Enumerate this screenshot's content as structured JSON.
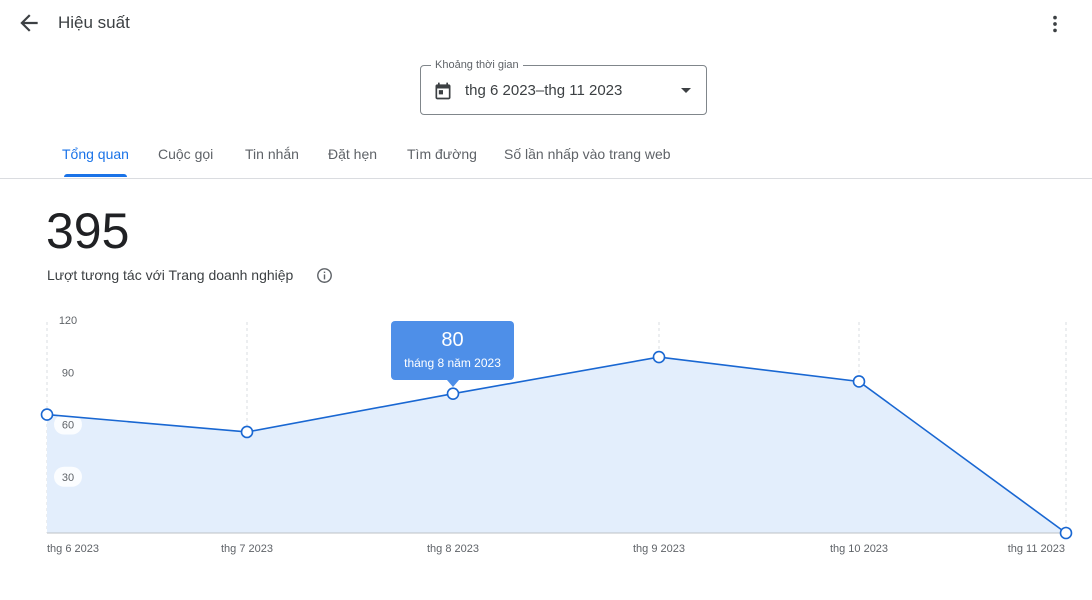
{
  "header": {
    "title": "Hiệu suất",
    "back_icon": "arrow-back-icon",
    "more_icon": "more-vert-icon"
  },
  "date_range": {
    "legend": "Khoảng thời gian",
    "value": "thg 6 2023–thg 11 2023",
    "icon": "calendar-icon"
  },
  "tabs": [
    {
      "label": "Tổng quan",
      "active": true
    },
    {
      "label": "Cuộc gọi"
    },
    {
      "label": "Tin nhắn"
    },
    {
      "label": "Đặt hẹn"
    },
    {
      "label": "Tìm đường"
    },
    {
      "label": "Số lần nhấp vào trang web"
    }
  ],
  "summary": {
    "value": "395",
    "label": "Lượt tương tác với Trang doanh nghiệp",
    "info_icon": "info-icon"
  },
  "tooltip": {
    "value": "80",
    "date": "tháng 8 năm 2023"
  },
  "colors": {
    "accent": "#1a73e8",
    "line": "#1967d2",
    "area": "#e3eefc",
    "tooltip": "#4e8fe8"
  },
  "chart_data": {
    "type": "area",
    "categories": [
      "thg 6 2023",
      "thg 7 2023",
      "thg 8 2023",
      "thg 9 2023",
      "thg 10 2023",
      "thg 11 2023"
    ],
    "values": [
      68,
      58,
      80,
      101,
      87,
      0
    ],
    "yticks": [
      30,
      60,
      90,
      120
    ],
    "ylim": [
      0,
      120
    ],
    "grid": "vertical-dashed",
    "highlighted_index": 2
  }
}
